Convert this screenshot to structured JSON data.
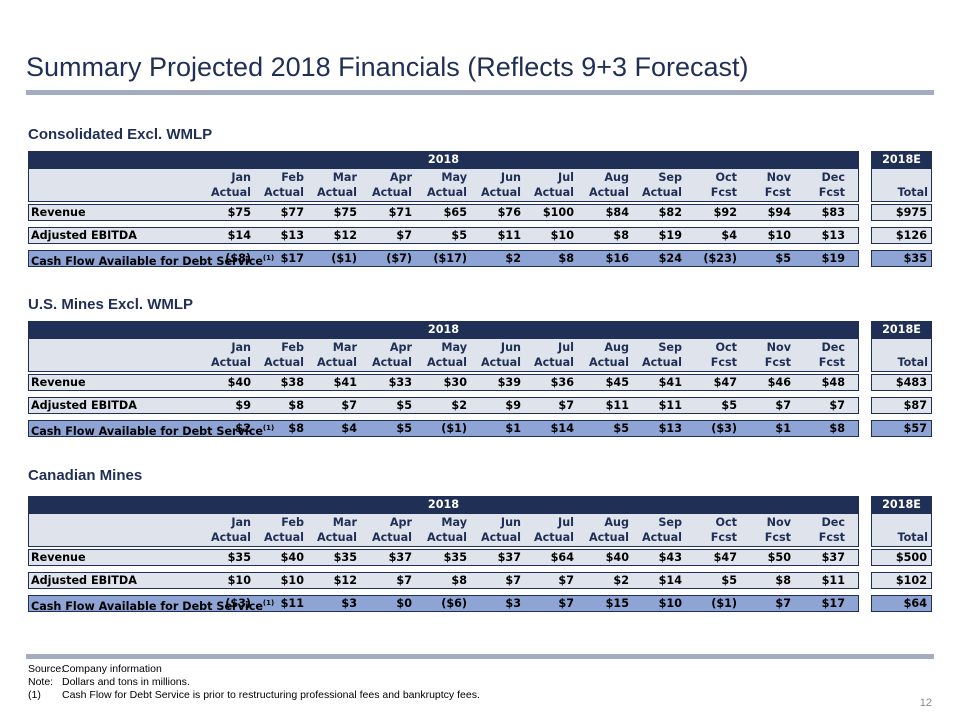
{
  "title": "Summary Projected 2018 Financials (Reflects 9+3 Forecast)",
  "year_label": "2018",
  "total_header": "2018E",
  "total_sub": "Total",
  "months": [
    "Jan",
    "Feb",
    "Mar",
    "Apr",
    "May",
    "Jun",
    "Jul",
    "Aug",
    "Sep",
    "Oct",
    "Nov",
    "Dec"
  ],
  "types": [
    "Actual",
    "Actual",
    "Actual",
    "Actual",
    "Actual",
    "Actual",
    "Actual",
    "Actual",
    "Actual",
    "Fcst",
    "Fcst",
    "Fcst"
  ],
  "footnote_marker": "(1)",
  "sections": [
    {
      "title": "Consolidated Excl. WMLP",
      "rows": [
        {
          "label": "Revenue",
          "values": [
            "$75",
            "$77",
            "$75",
            "$71",
            "$65",
            "$76",
            "$100",
            "$84",
            "$82",
            "$92",
            "$94",
            "$83"
          ],
          "total": "$975"
        },
        {
          "label": "Adjusted EBITDA",
          "values": [
            "$14",
            "$13",
            "$12",
            "$7",
            "$5",
            "$11",
            "$10",
            "$8",
            "$19",
            "$4",
            "$10",
            "$13"
          ],
          "total": "$126"
        },
        {
          "label": "Cash Flow Available for Debt Service",
          "values": [
            "($8)",
            "$17",
            "($1)",
            "($7)",
            "($17)",
            "$2",
            "$8",
            "$16",
            "$24",
            "($23)",
            "$5",
            "$19"
          ],
          "total": "$35"
        }
      ]
    },
    {
      "title": "U.S. Mines Excl. WMLP",
      "rows": [
        {
          "label": "Revenue",
          "values": [
            "$40",
            "$38",
            "$41",
            "$33",
            "$30",
            "$39",
            "$36",
            "$45",
            "$41",
            "$47",
            "$46",
            "$48"
          ],
          "total": "$483"
        },
        {
          "label": "Adjusted EBITDA",
          "values": [
            "$9",
            "$8",
            "$7",
            "$5",
            "$2",
            "$9",
            "$7",
            "$11",
            "$11",
            "$5",
            "$7",
            "$7"
          ],
          "total": "$87"
        },
        {
          "label": "Cash Flow Available for Debt Service",
          "values": [
            "$2",
            "$8",
            "$4",
            "$5",
            "($1)",
            "$1",
            "$14",
            "$5",
            "$13",
            "($3)",
            "$1",
            "$8"
          ],
          "total": "$57"
        }
      ]
    },
    {
      "title": "Canadian Mines",
      "rows": [
        {
          "label": "Revenue",
          "values": [
            "$35",
            "$40",
            "$35",
            "$37",
            "$35",
            "$37",
            "$64",
            "$40",
            "$43",
            "$47",
            "$50",
            "$37"
          ],
          "total": "$500"
        },
        {
          "label": "Adjusted EBITDA",
          "values": [
            "$10",
            "$10",
            "$12",
            "$7",
            "$8",
            "$7",
            "$7",
            "$2",
            "$14",
            "$5",
            "$8",
            "$11"
          ],
          "total": "$102"
        },
        {
          "label": "Cash Flow Available for Debt Service",
          "values": [
            "($3)",
            "$11",
            "$3",
            "$0",
            "($6)",
            "$3",
            "$7",
            "$15",
            "$10",
            "($1)",
            "$7",
            "$17"
          ],
          "total": "$64"
        }
      ]
    }
  ],
  "footnotes": [
    {
      "key": "Source:",
      "text": "Company information"
    },
    {
      "key": "Note:",
      "text": "Dollars and tons in millions."
    },
    {
      "key": "(1)",
      "text": "Cash Flow for Debt Service is prior to restructuring professional fees and bankruptcy fees."
    }
  ],
  "page_number": "12"
}
